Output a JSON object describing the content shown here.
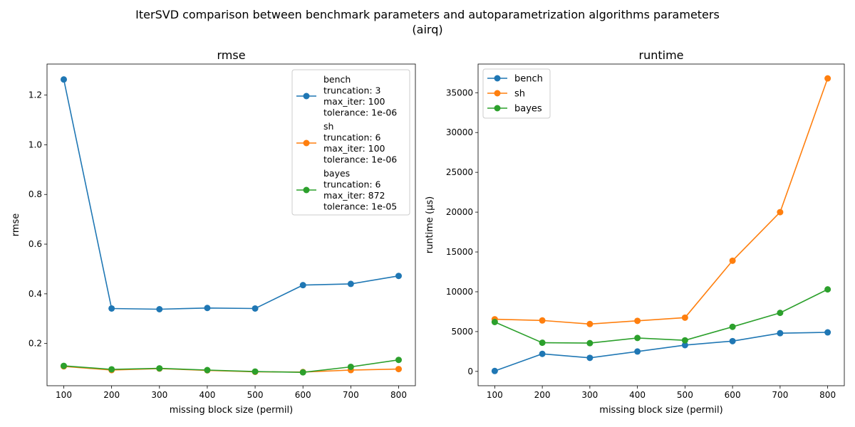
{
  "figure": {
    "title_line1": "IterSVD comparison between benchmark parameters and autoparametrization algorithms parameters",
    "title_line2": "(airq)"
  },
  "colors": {
    "bench": "#1f77b4",
    "sh": "#ff7f0e",
    "bayes": "#2ca02c"
  },
  "chart_data": [
    {
      "type": "line",
      "title": "rmse",
      "xlabel": "missing block size (permil)",
      "ylabel": "rmse",
      "x": [
        100,
        200,
        300,
        400,
        500,
        600,
        700,
        800
      ],
      "xlim": [
        65,
        835
      ],
      "ylim": [
        0.03,
        1.325
      ],
      "xticks": [
        100,
        200,
        300,
        400,
        500,
        600,
        700,
        800
      ],
      "yticks": [
        0.2,
        0.4,
        0.6,
        0.8,
        1.0,
        1.2
      ],
      "ytick_labels": [
        "0.2",
        "0.4",
        "0.6",
        "0.8",
        "1.0",
        "1.2"
      ],
      "grid": false,
      "legend_position": "top-right",
      "series": [
        {
          "name": "bench",
          "legend_lines": [
            "bench",
            "truncation: 3",
            "max_iter: 100",
            "tolerance: 1e-06"
          ],
          "values": [
            1.263,
            0.341,
            0.338,
            0.343,
            0.341,
            0.435,
            0.44,
            0.472
          ]
        },
        {
          "name": "sh",
          "legend_lines": [
            "sh",
            "truncation: 6",
            "max_iter: 100",
            "tolerance: 1e-06"
          ],
          "values": [
            0.108,
            0.093,
            0.099,
            0.092,
            0.086,
            0.085,
            0.093,
            0.097
          ]
        },
        {
          "name": "bayes",
          "legend_lines": [
            "bayes",
            "truncation: 6",
            "max_iter: 872",
            "tolerance: 1e-05"
          ],
          "values": [
            0.11,
            0.096,
            0.1,
            0.093,
            0.087,
            0.084,
            0.106,
            0.134
          ]
        }
      ]
    },
    {
      "type": "line",
      "title": "runtime",
      "xlabel": "missing block size (permil)",
      "ylabel": "runtime (µs)",
      "x": [
        100,
        200,
        300,
        400,
        500,
        600,
        700,
        800
      ],
      "xlim": [
        65,
        835
      ],
      "ylim": [
        -1800,
        38600
      ],
      "xticks": [
        100,
        200,
        300,
        400,
        500,
        600,
        700,
        800
      ],
      "yticks": [
        0,
        5000,
        10000,
        15000,
        20000,
        25000,
        30000,
        35000
      ],
      "ytick_labels": [
        "0",
        "5000",
        "10000",
        "15000",
        "20000",
        "25000",
        "30000",
        "35000"
      ],
      "grid": false,
      "legend_position": "top-left",
      "series": [
        {
          "name": "bench",
          "legend_lines": [
            "bench"
          ],
          "values": [
            50,
            2200,
            1700,
            2500,
            3300,
            3800,
            4800,
            4900
          ]
        },
        {
          "name": "sh",
          "legend_lines": [
            "sh"
          ],
          "values": [
            6550,
            6400,
            5950,
            6350,
            6750,
            13900,
            20000,
            36800
          ]
        },
        {
          "name": "bayes",
          "legend_lines": [
            "bayes"
          ],
          "values": [
            6200,
            3600,
            3550,
            4200,
            3900,
            5600,
            7350,
            10300
          ]
        }
      ]
    }
  ]
}
